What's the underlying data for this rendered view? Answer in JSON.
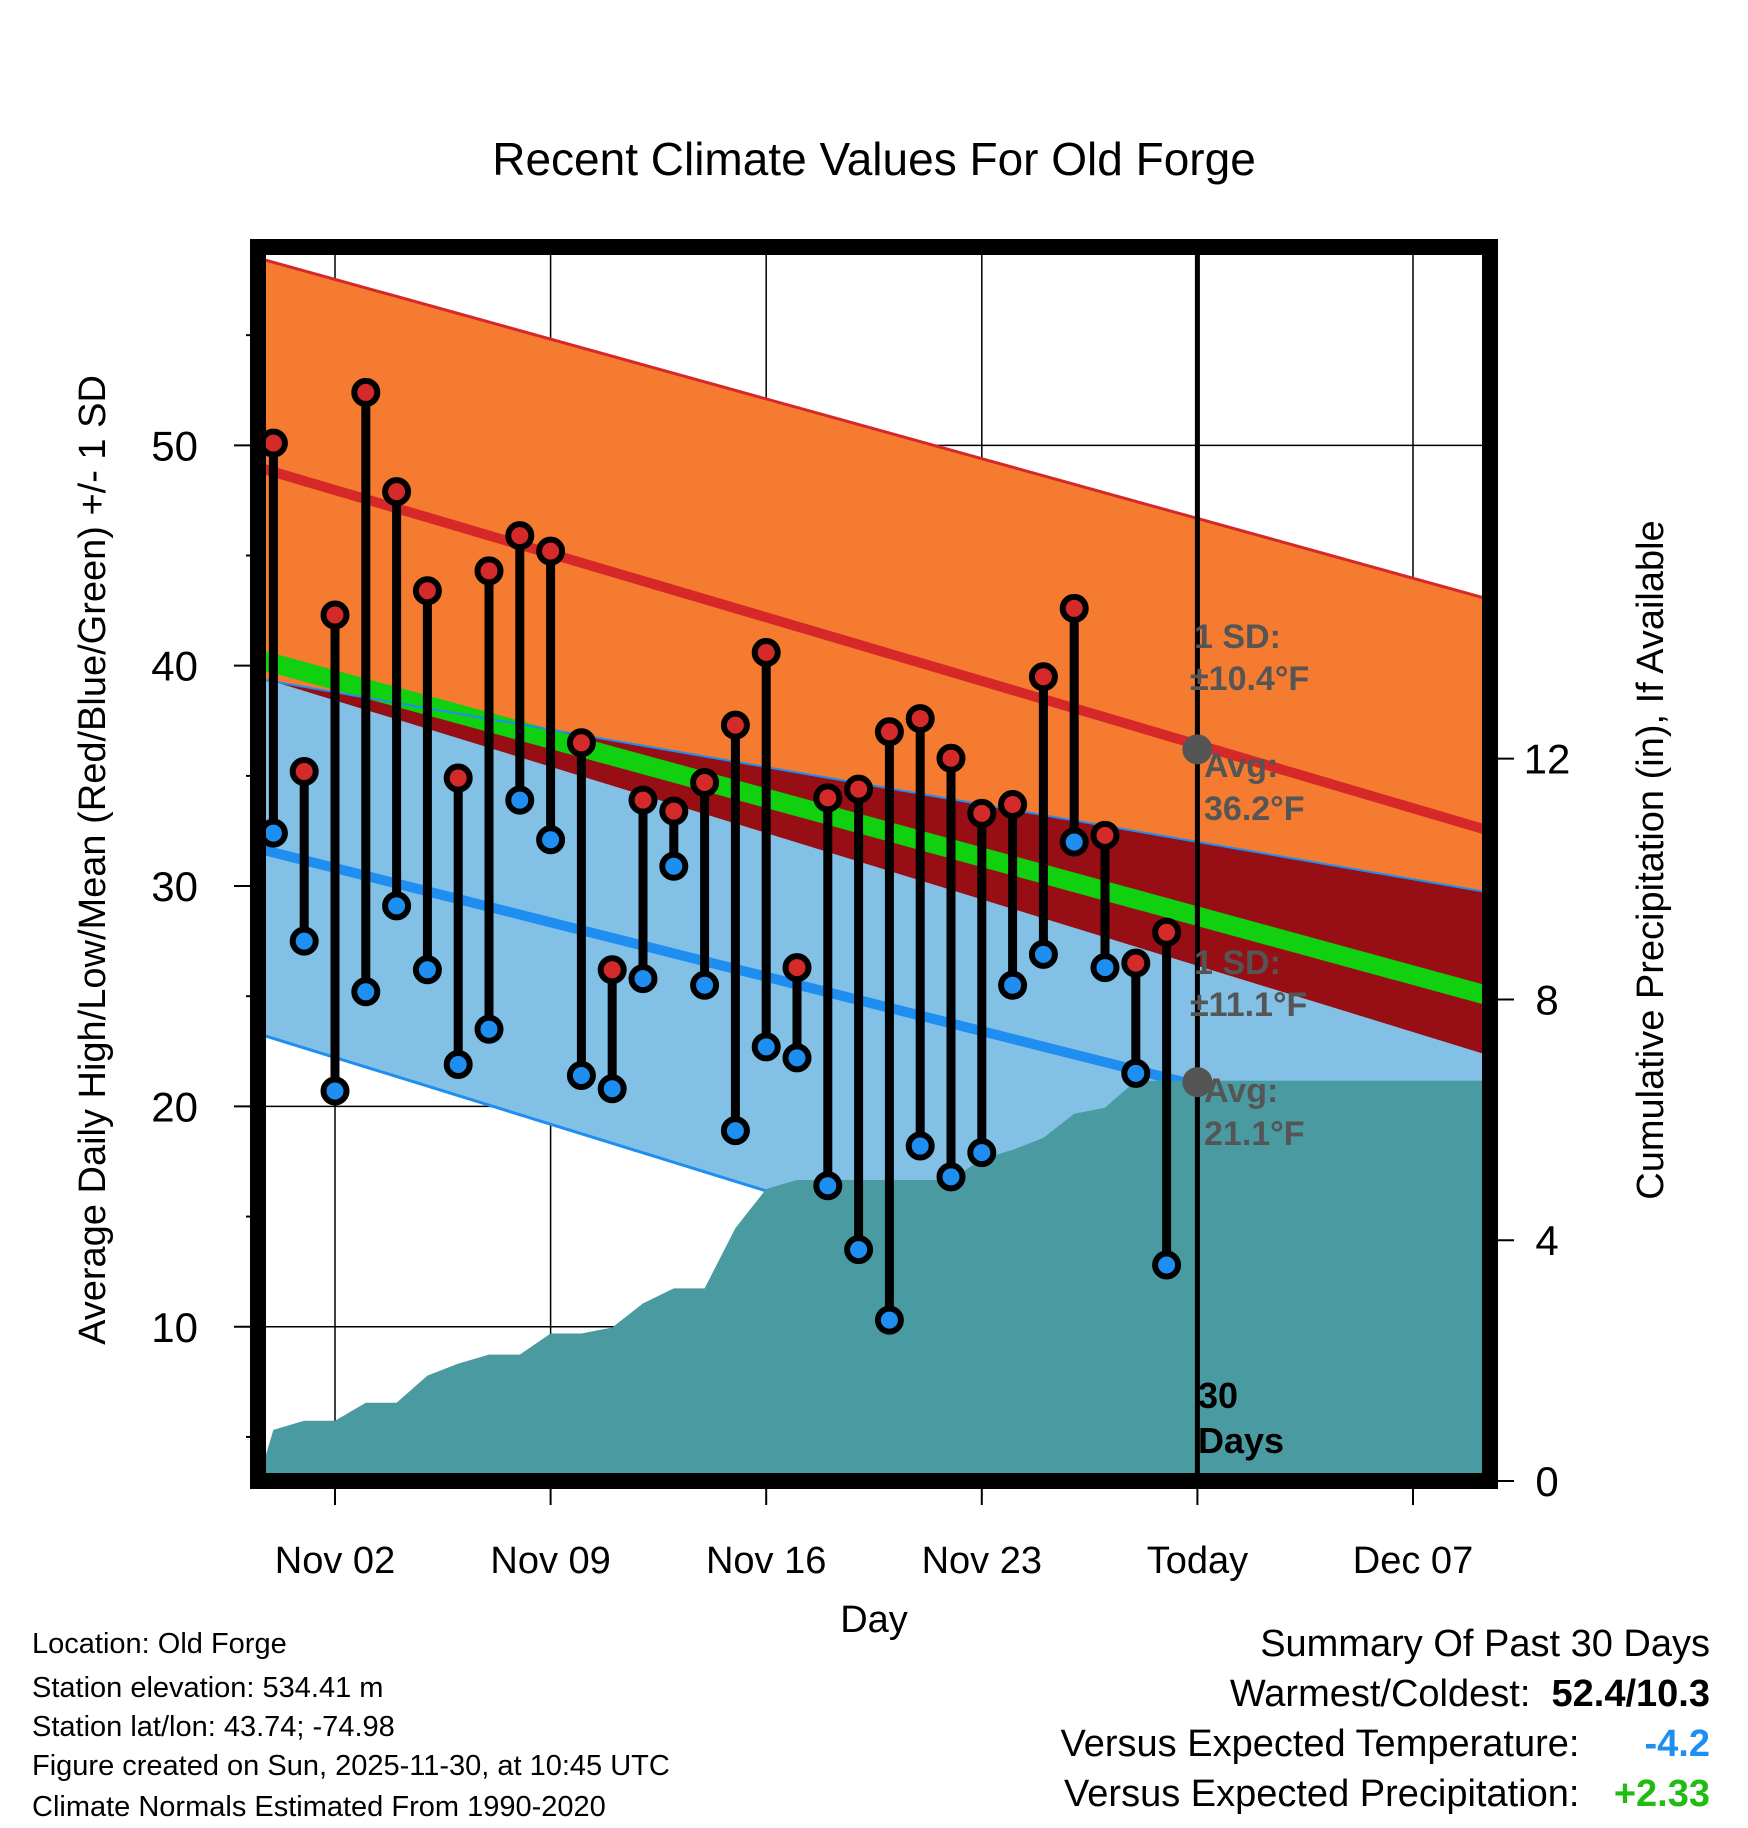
{
  "chart_data": {
    "type": "line",
    "title": "Recent Climate Values For Old Forge",
    "xlabel": "Day",
    "ylabel": "Average Daily High/Low/Mean (Red/Blue/Green) +/- 1 SD",
    "y2label": "Cumulative Precipitation (in), If Available",
    "ylim": [
      3,
      59
    ],
    "y2lim": [
      0,
      20.5
    ],
    "xlim": [
      -0.5,
      39.5
    ],
    "yticks": [
      10,
      20,
      30,
      40,
      50
    ],
    "y2ticks": [
      0,
      4,
      8,
      12
    ],
    "xticks": [
      {
        "x": 2,
        "label": "Nov 02"
      },
      {
        "x": 9,
        "label": "Nov 09"
      },
      {
        "x": 16,
        "label": "Nov 16"
      },
      {
        "x": 23,
        "label": "Nov 23"
      },
      {
        "x": 30,
        "label": "Today"
      },
      {
        "x": 37,
        "label": "Dec 07"
      }
    ],
    "today_x": 30,
    "today_label_1": "30",
    "today_label_2": "Days",
    "days": [
      0,
      1,
      2,
      3,
      4,
      5,
      6,
      7,
      8,
      9,
      10,
      11,
      12,
      13,
      14,
      15,
      16,
      17,
      18,
      19,
      20,
      21,
      22,
      23,
      24,
      25,
      26,
      27,
      28,
      29
    ],
    "highs": [
      50.1,
      35.2,
      42.3,
      52.4,
      47.9,
      43.4,
      34.9,
      44.3,
      45.9,
      45.2,
      36.5,
      26.2,
      33.9,
      33.4,
      34.7,
      37.3,
      40.6,
      26.3,
      34.0,
      34.4,
      37.0,
      37.6,
      35.8,
      33.3,
      33.7,
      39.5,
      42.6,
      32.3,
      26.5,
      27.9
    ],
    "lows": [
      32.4,
      27.5,
      20.7,
      25.2,
      29.1,
      26.2,
      21.9,
      23.5,
      33.9,
      32.1,
      21.4,
      20.8,
      25.8,
      30.9,
      25.5,
      18.9,
      22.7,
      22.2,
      16.4,
      13.5,
      10.3,
      18.2,
      16.8,
      17.9,
      25.5,
      26.9,
      32.0,
      26.3,
      21.5,
      12.8
    ],
    "normals": {
      "x": [
        -0.5,
        39.5
      ],
      "avg_high": [
        49.0,
        32.5
      ],
      "avg_high_upper": [
        58.5,
        43.0
      ],
      "avg_low": [
        31.7,
        17.6
      ],
      "avg_low_lower": [
        23.3,
        6.0
      ],
      "low_upper": [
        39.4,
        29.7
      ],
      "mean": [
        40.3,
        25.0
      ],
      "mean_band_half_width": 0.45,
      "high_lower": [
        39.5,
        22.3
      ]
    },
    "precip": {
      "x": [
        -0.5,
        0,
        1,
        2,
        3,
        4,
        5,
        6,
        7,
        8,
        9,
        10,
        11,
        12,
        13,
        14,
        15,
        16,
        17,
        18,
        19,
        20,
        21,
        22,
        23,
        24,
        25,
        26,
        27,
        28,
        29,
        39.5
      ],
      "values": [
        0,
        0.85,
        1.0,
        1.0,
        1.3,
        1.3,
        1.75,
        1.95,
        2.1,
        2.1,
        2.45,
        2.45,
        2.55,
        2.95,
        3.2,
        3.2,
        4.2,
        4.85,
        5.0,
        5.0,
        5.0,
        5.0,
        5.0,
        5.0,
        5.35,
        5.5,
        5.7,
        6.1,
        6.2,
        6.65,
        6.65,
        6.65
      ]
    },
    "annotations": {
      "high_sd_label_1": "1 SD:",
      "high_sd_label_2": "±10.4°F",
      "high_avg_label_1": "Avg:",
      "high_avg_label_2": "36.2°F",
      "high_avg_value": 36.2,
      "low_sd_label_1": "1 SD:",
      "low_sd_label_2": "±11.1°F",
      "low_avg_label_1": "Avg:",
      "low_avg_label_2": "21.1°F",
      "low_avg_value": 21.1
    },
    "colors": {
      "high_band": "#f47b30",
      "high_line": "#d62828",
      "low_band": "#82c0e6",
      "low_line": "#1f8ef1",
      "overlap_band": "#970f14",
      "mean_band": "#10d010",
      "precip_fill": "#4a9aa2",
      "high_dot": "#d42a2a",
      "low_dot": "#1e8ef0",
      "annotation_text": "#555555"
    }
  },
  "info": {
    "location": "Location: Old Forge",
    "elevation": "Station elevation: 534.41 m",
    "latlon": "Station lat/lon: 43.74; -74.98",
    "created": "Figure created on Sun, 2025-11-30, at 10:45 UTC",
    "normals": "Climate Normals Estimated From 1990-2020"
  },
  "summary": {
    "title": "Summary Of Past 30 Days",
    "warmest_label": "Warmest/Coldest:",
    "warmest_value": "52.4/10.3",
    "temp_label": "Versus Expected Temperature:",
    "temp_value": "-4.2",
    "temp_color": "#1f8ef1",
    "precip_label": "Versus Expected Precipitation:",
    "precip_value": "+2.33",
    "precip_color": "#22bb11"
  }
}
